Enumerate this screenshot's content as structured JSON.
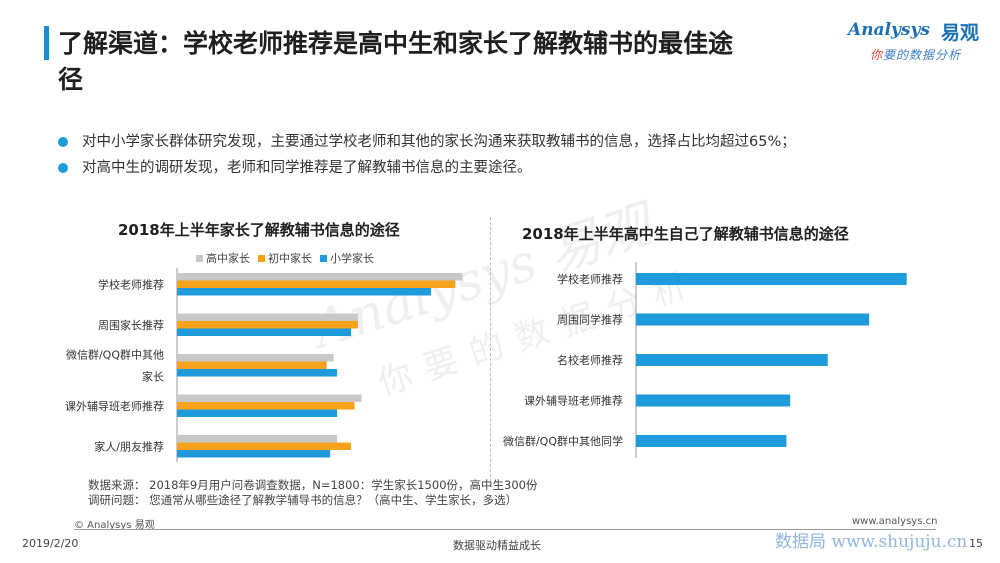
{
  "title": {
    "line1": "了解渠道：学校老师推荐是高中生和家长了解教辅书的最佳途",
    "line2": "径"
  },
  "logo": {
    "word": "Analysys",
    "cn": "易观",
    "slogan_first": "你",
    "slogan_rest": "要的数据分析"
  },
  "bullets": [
    "对中小学家长群体研究发现，主要通过学校老师和其他的家长沟通来获取教辅书的信息，选择占比均超过65%；",
    " 对高中生的调研发现，老师和同学推荐是了解教辅书信息的主要途径。"
  ],
  "chart_data": [
    {
      "type": "bar",
      "orientation": "horizontal",
      "title": "2018年上半年家长了解教辅书信息的途径",
      "categories": [
        "学校老师推荐",
        "周围家长推荐",
        "微信群/QQ群中其他家长",
        "课外辅导班老师推荐",
        "家人/朋友推荐"
      ],
      "category_lines": [
        [
          "学校老师推荐"
        ],
        [
          "周围家长推荐"
        ],
        [
          "微信群/QQ群中其他",
          "家长"
        ],
        [
          "课外辅导班老师推荐"
        ],
        [
          "家人/朋友推荐"
        ]
      ],
      "series": [
        {
          "name": "高中家长",
          "color": "#c8c8c8",
          "values": [
            82,
            52,
            45,
            53,
            46
          ]
        },
        {
          "name": "初中家长",
          "color": "#f7a21b",
          "values": [
            80,
            52,
            43,
            51,
            50
          ]
        },
        {
          "name": "小学家长",
          "color": "#1f9bdc",
          "values": [
            73,
            50,
            46,
            46,
            44
          ]
        }
      ],
      "xlim": [
        0,
        100
      ],
      "legend_position": "top",
      "grid": false
    },
    {
      "type": "bar",
      "orientation": "horizontal",
      "title": "2018年上半年高中生自己了解教辅书信息的途径",
      "categories": [
        "学校老师推荐",
        "周围同学推荐",
        "名校老师推荐",
        "课外辅导班老师推荐",
        "微信群/QQ群中其他同学"
      ],
      "series": [
        {
          "color": "#1f9bdc",
          "values": [
            72,
            62,
            51,
            41,
            40
          ]
        }
      ],
      "xlim": [
        0,
        100
      ],
      "grid": false
    }
  ],
  "watermark": {
    "word": "Analysys 易观",
    "slogan": "你要的数据分析"
  },
  "source": {
    "line1": "数据来源：  2018年9月用户问卷调查数据，N=1800：学生家长1500份，高中生300份",
    "line2": "调研问题：  您通常从哪些途径了解教学辅导书的信息？（高中生、学生家长，多选）"
  },
  "footer": {
    "copyright": "© Analysys 易观",
    "website": "www.analysys.cn",
    "date": "2019/2/20",
    "tagline": "数据驱动精益成长",
    "page": "15",
    "corner_watermark": "数据局  www.shujuju.cn"
  }
}
